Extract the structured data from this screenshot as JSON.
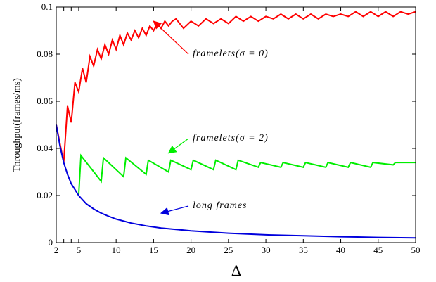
{
  "chart_data": {
    "type": "line",
    "title": "",
    "xlabel": "Δ",
    "ylabel": "Throughput(frames/ms)",
    "xlim": [
      2,
      50
    ],
    "ylim": [
      0,
      0.1
    ],
    "x_ticks": [
      2,
      5,
      10,
      15,
      20,
      25,
      30,
      35,
      40,
      45,
      50
    ],
    "x_tick_labels": [
      "2",
      "5",
      "10",
      "15",
      "20",
      "25",
      "30",
      "35",
      "40",
      "45",
      "50"
    ],
    "extra_x_ticks": [
      3,
      4
    ],
    "y_ticks": [
      0,
      0.02,
      0.04,
      0.06,
      0.08,
      0.1
    ],
    "y_tick_labels": [
      "0",
      "0.02",
      "0.04",
      "0.06",
      "0.08",
      "0.1"
    ],
    "grid": false,
    "legend": "none (inline annotations with arrows)",
    "series": [
      {
        "color": "#ff0000",
        "x": [
          2,
          3,
          3.5,
          4,
          4.5,
          5,
          5.5,
          6,
          6.5,
          7,
          7.5,
          8,
          8.5,
          9,
          9.5,
          10,
          10.5,
          11,
          11.5,
          12,
          12.5,
          13,
          13.5,
          14,
          14.5,
          15,
          15.5,
          16,
          16.5,
          17,
          17.5,
          18,
          19,
          20,
          21,
          22,
          23,
          24,
          25,
          26,
          27,
          28,
          29,
          30,
          31,
          32,
          33,
          34,
          35,
          36,
          37,
          38,
          39,
          40,
          41,
          42,
          43,
          44,
          45,
          46,
          47,
          48,
          49,
          50
        ],
        "y": [
          0.05,
          0.034,
          0.058,
          0.051,
          0.068,
          0.064,
          0.074,
          0.068,
          0.079,
          0.075,
          0.082,
          0.078,
          0.084,
          0.08,
          0.086,
          0.082,
          0.088,
          0.084,
          0.089,
          0.086,
          0.09,
          0.087,
          0.091,
          0.088,
          0.092,
          0.09,
          0.093,
          0.091,
          0.094,
          0.092,
          0.094,
          0.095,
          0.091,
          0.094,
          0.092,
          0.095,
          0.093,
          0.095,
          0.093,
          0.096,
          0.094,
          0.096,
          0.094,
          0.096,
          0.095,
          0.097,
          0.095,
          0.097,
          0.095,
          0.097,
          0.095,
          0.097,
          0.096,
          0.097,
          0.096,
          0.098,
          0.096,
          0.098,
          0.096,
          0.098,
          0.096,
          0.098,
          0.097,
          0.098
        ]
      },
      {
        "color": "#00ee00",
        "x": [
          5,
          5.3,
          8,
          8.3,
          11,
          11.3,
          14,
          14.3,
          17,
          17.3,
          20,
          20.3,
          23,
          23.3,
          26,
          26.3,
          29,
          29.3,
          32,
          32.3,
          35,
          35.3,
          38,
          38.3,
          41,
          41.3,
          44,
          44.3,
          47,
          47.3,
          50
        ],
        "y": [
          0.02,
          0.037,
          0.026,
          0.036,
          0.028,
          0.036,
          0.029,
          0.035,
          0.03,
          0.035,
          0.031,
          0.035,
          0.031,
          0.035,
          0.031,
          0.035,
          0.032,
          0.034,
          0.032,
          0.034,
          0.032,
          0.034,
          0.032,
          0.034,
          0.032,
          0.034,
          0.032,
          0.034,
          0.033,
          0.034,
          0.034
        ]
      },
      {
        "color": "#0000dd",
        "x": [
          2,
          2.5,
          3,
          3.5,
          4,
          4.5,
          5,
          6,
          7,
          8,
          9,
          10,
          12,
          14,
          16,
          18,
          20,
          25,
          30,
          35,
          40,
          45,
          50
        ],
        "y": [
          0.05,
          0.041,
          0.034,
          0.029,
          0.025,
          0.0225,
          0.02,
          0.0165,
          0.0143,
          0.0125,
          0.0112,
          0.01,
          0.0083,
          0.0071,
          0.0062,
          0.0056,
          0.005,
          0.004,
          0.0033,
          0.0029,
          0.0025,
          0.0022,
          0.002
        ]
      }
    ],
    "annotations": [
      {
        "text": "framelets(σ = 0)",
        "color": "#ff0000",
        "arrow_to": [
          15,
          0.094
        ]
      },
      {
        "text": "framelets(σ = 2)",
        "color": "#00ee00",
        "arrow_to": [
          17,
          0.038
        ]
      },
      {
        "text": "long frames",
        "color": "#0000dd",
        "arrow_to": [
          16,
          0.0125
        ]
      }
    ]
  }
}
